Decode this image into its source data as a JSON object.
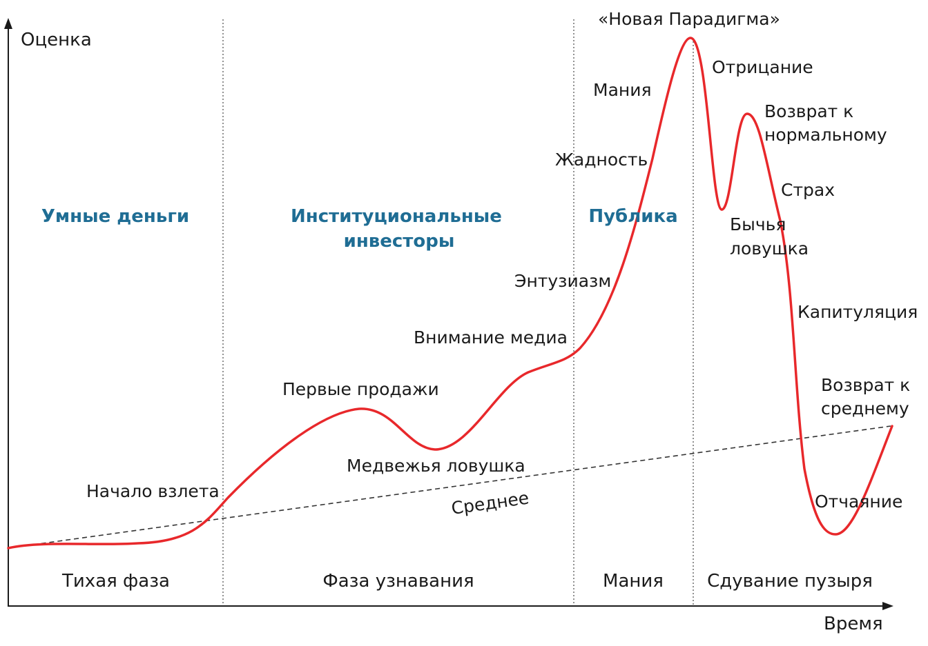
{
  "colors": {
    "curve": "#e8282b",
    "group": "#1f6d94",
    "axis": "#1a1a1a"
  },
  "axes": {
    "y_label": "Оценка",
    "x_label": "Время"
  },
  "groups": [
    {
      "id": "smart",
      "lines": [
        "Умные деньги"
      ]
    },
    {
      "id": "inst",
      "lines": [
        "Институциональные",
        "инвесторы"
      ]
    },
    {
      "id": "public",
      "lines": [
        "Публика"
      ]
    }
  ],
  "phases": [
    "Тихая фаза",
    "Фаза узнавания",
    "Мания",
    "Сдувание пузыря"
  ],
  "labels": {
    "new_paradigm": "«Новая Парадигма»",
    "denial": "Отрицание",
    "mania": "Мания",
    "return_normal_1": "Возврат к",
    "return_normal_2": "нормальному",
    "greed": "Жадность",
    "fear": "Страх",
    "bull_trap_1": "Бычья",
    "bull_trap_2": "ловушка",
    "enthusiasm": "Энтузиазм",
    "capitulation": "Капитуляция",
    "media": "Внимание медиа",
    "return_mean_1": "Возврат к",
    "return_mean_2": "среднему",
    "first_sales": "Первые продажи",
    "bear_trap": "Медвежья ловушка",
    "takeoff": "Начало взлета",
    "mean": "Среднее",
    "despair": "Отчаяние"
  }
}
